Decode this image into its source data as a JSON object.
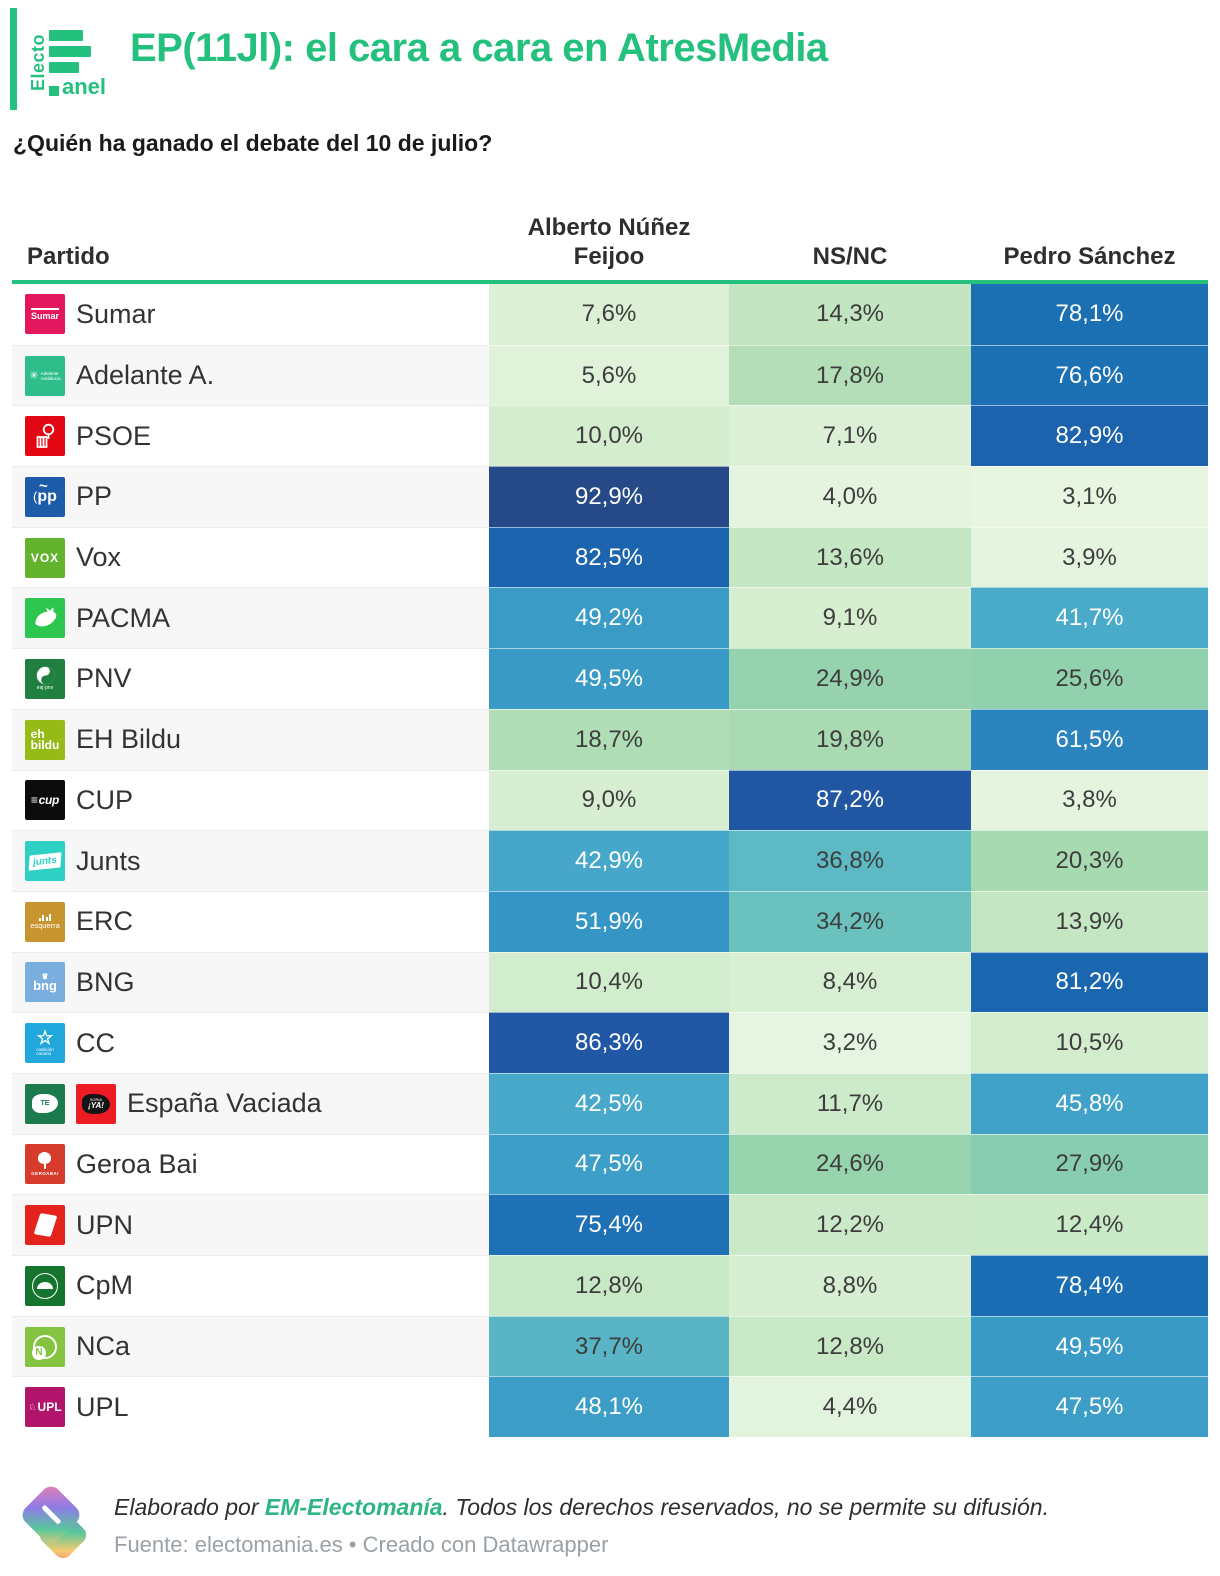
{
  "brand": {
    "vertical_text": "Electo",
    "suffix_text": "anel",
    "accent": "#24c07d"
  },
  "header": {
    "title": "EP(11Jl): el cara a cara en AtresMedia",
    "subtitle": "¿Quién ha ganado el debate del 10 de julio?"
  },
  "chart_data": {
    "type": "heatmap",
    "title": "EP(11Jl): el cara a cara en AtresMedia",
    "subtitle": "¿Quién ha ganado el debate del 10 de julio?",
    "row_header": "Partido",
    "columns": [
      "Alberto Núñez\nFeijoo",
      "NS/NC",
      "Pedro Sánchez"
    ],
    "rows": [
      {
        "party": "Sumar",
        "icons": [
          "sumar"
        ],
        "values": [
          7.6,
          14.3,
          78.1
        ],
        "labels": [
          "7,6%",
          "14,3%",
          "78,1%"
        ]
      },
      {
        "party": "Adelante A.",
        "icons": [
          "adelante"
        ],
        "values": [
          5.6,
          17.8,
          76.6
        ],
        "labels": [
          "5,6%",
          "17,8%",
          "76,6%"
        ]
      },
      {
        "party": "PSOE",
        "icons": [
          "psoe"
        ],
        "values": [
          10.0,
          7.1,
          82.9
        ],
        "labels": [
          "10,0%",
          "7,1%",
          "82,9%"
        ]
      },
      {
        "party": "PP",
        "icons": [
          "pp"
        ],
        "values": [
          92.9,
          4.0,
          3.1
        ],
        "labels": [
          "92,9%",
          "4,0%",
          "3,1%"
        ]
      },
      {
        "party": "Vox",
        "icons": [
          "vox"
        ],
        "values": [
          82.5,
          13.6,
          3.9
        ],
        "labels": [
          "82,5%",
          "13,6%",
          "3,9%"
        ]
      },
      {
        "party": "PACMA",
        "icons": [
          "pacma"
        ],
        "values": [
          49.2,
          9.1,
          41.7
        ],
        "labels": [
          "49,2%",
          "9,1%",
          "41,7%"
        ]
      },
      {
        "party": "PNV",
        "icons": [
          "pnv"
        ],
        "values": [
          49.5,
          24.9,
          25.6
        ],
        "labels": [
          "49,5%",
          "24,9%",
          "25,6%"
        ]
      },
      {
        "party": "EH Bildu",
        "icons": [
          "ehbildu"
        ],
        "values": [
          18.7,
          19.8,
          61.5
        ],
        "labels": [
          "18,7%",
          "19,8%",
          "61,5%"
        ]
      },
      {
        "party": "CUP",
        "icons": [
          "cup"
        ],
        "values": [
          9.0,
          87.2,
          3.8
        ],
        "labels": [
          "9,0%",
          "87,2%",
          "3,8%"
        ]
      },
      {
        "party": "Junts",
        "icons": [
          "junts"
        ],
        "values": [
          42.9,
          36.8,
          20.3
        ],
        "labels": [
          "42,9%",
          "36,8%",
          "20,3%"
        ]
      },
      {
        "party": "ERC",
        "icons": [
          "erc"
        ],
        "values": [
          51.9,
          34.2,
          13.9
        ],
        "labels": [
          "51,9%",
          "34,2%",
          "13,9%"
        ]
      },
      {
        "party": "BNG",
        "icons": [
          "bng"
        ],
        "values": [
          10.4,
          8.4,
          81.2
        ],
        "labels": [
          "10,4%",
          "8,4%",
          "81,2%"
        ]
      },
      {
        "party": "CC",
        "icons": [
          "cc"
        ],
        "values": [
          86.3,
          3.2,
          10.5
        ],
        "labels": [
          "86,3%",
          "3,2%",
          "10,5%"
        ]
      },
      {
        "party": "España Vaciada",
        "icons": [
          "espana-vaciada",
          "soria-ya"
        ],
        "values": [
          42.5,
          11.7,
          45.8
        ],
        "labels": [
          "42,5%",
          "11,7%",
          "45,8%"
        ]
      },
      {
        "party": "Geroa Bai",
        "icons": [
          "geroabai"
        ],
        "values": [
          47.5,
          24.6,
          27.9
        ],
        "labels": [
          "47,5%",
          "24,6%",
          "27,9%"
        ]
      },
      {
        "party": "UPN",
        "icons": [
          "upn"
        ],
        "values": [
          75.4,
          12.2,
          12.4
        ],
        "labels": [
          "75,4%",
          "12,2%",
          "12,4%"
        ]
      },
      {
        "party": "CpM",
        "icons": [
          "cpm"
        ],
        "values": [
          12.8,
          8.8,
          78.4
        ],
        "labels": [
          "12,8%",
          "8,8%",
          "78,4%"
        ]
      },
      {
        "party": "NCa",
        "icons": [
          "nca"
        ],
        "values": [
          37.7,
          12.8,
          49.5
        ],
        "labels": [
          "37,7%",
          "12,8%",
          "49,5%"
        ]
      },
      {
        "party": "UPL",
        "icons": [
          "upl"
        ],
        "values": [
          48.1,
          4.4,
          47.5
        ],
        "labels": [
          "48,1%",
          "4,4%",
          "47,5%"
        ]
      }
    ]
  },
  "logos": {
    "sumar": {
      "name": "sumar-logo-icon",
      "bg": "#e2175d",
      "text": "Sumar"
    },
    "adelante": {
      "name": "adelante-andalucia-logo-icon",
      "bg": "#2fbe8b",
      "text": "Adelante Andalucía"
    },
    "psoe": {
      "name": "psoe-logo-icon",
      "bg": "#e30613",
      "text": ""
    },
    "pp": {
      "name": "pp-logo-icon",
      "bg": "#1c5ca8",
      "text": "pp"
    },
    "vox": {
      "name": "vox-logo-icon",
      "bg": "#64b32e",
      "text": "VOX"
    },
    "pacma": {
      "name": "pacma-logo-icon",
      "bg": "#2dc750",
      "text": ""
    },
    "pnv": {
      "name": "pnv-logo-icon",
      "bg": "#20803f",
      "text": "eaj pnv"
    },
    "ehbildu": {
      "name": "eh-bildu-logo-icon",
      "bg": "#96ba16",
      "text": "eh bildu"
    },
    "cup": {
      "name": "cup-logo-icon",
      "bg": "#0c0c0c",
      "text": "cup"
    },
    "junts": {
      "name": "junts-logo-icon",
      "bg": "#2fd0c4",
      "text": "junts"
    },
    "erc": {
      "name": "erc-esquerra-logo-icon",
      "bg": "#c89430",
      "text": "esquerra"
    },
    "bng": {
      "name": "bng-logo-icon",
      "bg": "#79aede",
      "text": "bng"
    },
    "cc": {
      "name": "coalicion-canaria-logo-icon",
      "bg": "#22a7dc",
      "text": "coalición canaria"
    },
    "espana-vaciada": {
      "name": "espana-vaciada-logo-icon",
      "bg": "#1b7b4e",
      "text": "TE"
    },
    "soria-ya": {
      "name": "soria-ya-logo-icon",
      "bg": "#ed1c24",
      "text": "SORIA ¡YA!"
    },
    "geroabai": {
      "name": "geroa-bai-logo-icon",
      "bg": "#d63b2c",
      "text": "GEROABAI"
    },
    "upn": {
      "name": "upn-logo-icon",
      "bg": "#e3231c",
      "text": ""
    },
    "cpm": {
      "name": "cpm-logo-icon",
      "bg": "#15752f",
      "text": ""
    },
    "nca": {
      "name": "nca-logo-icon",
      "bg": "#85c440",
      "text": "N"
    },
    "upl": {
      "name": "upl-logo-icon",
      "bg": "#b1156b",
      "text": "UPL"
    }
  },
  "colors": {
    "accent": "#24c07d",
    "value_text_dark": "#3d3d3d",
    "value_text_light": "#ffffff",
    "white_text_threshold": 40,
    "scale": [
      [
        0,
        "#eef8e9"
      ],
      [
        5,
        "#e2f3dc"
      ],
      [
        10,
        "#d4edcf"
      ],
      [
        15,
        "#c0e4bf"
      ],
      [
        20,
        "#a9dab1"
      ],
      [
        25,
        "#95d2ad"
      ],
      [
        30,
        "#7ec9b4"
      ],
      [
        35,
        "#66bfbf"
      ],
      [
        40,
        "#4eadcb"
      ],
      [
        45,
        "#42a3c9"
      ],
      [
        50,
        "#3899c6"
      ],
      [
        55,
        "#3190c3"
      ],
      [
        62,
        "#2a83be"
      ],
      [
        70,
        "#2076b7"
      ],
      [
        78,
        "#1b6fb3"
      ],
      [
        82,
        "#1b65ae"
      ],
      [
        87,
        "#2156a3"
      ],
      [
        93,
        "#264a88"
      ],
      [
        100,
        "#2b4279"
      ]
    ]
  },
  "footer": {
    "line1_prefix": "Elaborado por ",
    "line1_brand": "EM-Electomanía",
    "line1_suffix": ". Todos los derechos reservados, no se permite su difusión.",
    "line2": "Fuente: electomania.es • Creado con Datawrapper",
    "brand_color": "#2db583"
  }
}
